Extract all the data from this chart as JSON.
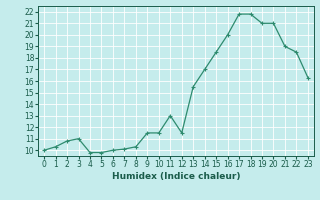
{
  "x": [
    0,
    1,
    2,
    3,
    4,
    5,
    6,
    7,
    8,
    9,
    10,
    11,
    12,
    13,
    14,
    15,
    16,
    17,
    18,
    19,
    20,
    21,
    22,
    23
  ],
  "y": [
    10.0,
    10.3,
    10.8,
    11.0,
    9.8,
    9.8,
    10.0,
    10.1,
    10.3,
    11.5,
    11.5,
    13.0,
    11.5,
    15.5,
    17.0,
    18.5,
    20.0,
    21.8,
    21.8,
    21.0,
    21.0,
    19.0,
    18.5,
    16.3
  ],
  "line_color": "#2e8b6e",
  "marker": "+",
  "marker_size": 3,
  "marker_lw": 0.8,
  "line_width": 0.9,
  "bg_color": "#c5ecec",
  "grid_color": "#ffffff",
  "tick_color": "#1a5c4a",
  "xlabel": "Humidex (Indice chaleur)",
  "ylabel_ticks": [
    10,
    11,
    12,
    13,
    14,
    15,
    16,
    17,
    18,
    19,
    20,
    21,
    22
  ],
  "xlim": [
    -0.5,
    23.5
  ],
  "ylim": [
    9.5,
    22.5
  ],
  "tick_fontsize": 5.5,
  "xlabel_fontsize": 6.5
}
